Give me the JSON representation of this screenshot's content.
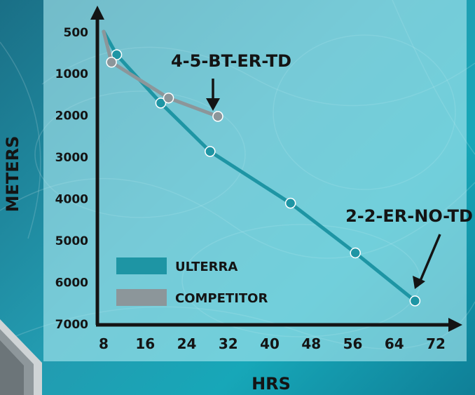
{
  "chart_data": {
    "type": "line",
    "xlabel": "HRS",
    "ylabel": "METERS",
    "x_ticks": [
      "8",
      "16",
      "24",
      "32",
      "40",
      "48",
      "56",
      "64",
      "72"
    ],
    "y_ticks": [
      "500",
      "1000",
      "2000",
      "3000",
      "4000",
      "5000",
      "6000",
      "7000"
    ],
    "xlim": [
      8,
      72
    ],
    "y_reversed": true,
    "legend_placement": "bottom-left",
    "series": [
      {
        "name": "ULTERRA",
        "color": "#1e95a4",
        "points": [
          [
            8,
            500
          ],
          [
            10.5,
            780
          ],
          [
            19,
            1720
          ],
          [
            28.5,
            2880
          ],
          [
            44,
            4120
          ],
          [
            56.5,
            5310
          ],
          [
            68,
            6460
          ]
        ]
      },
      {
        "name": "COMPETITOR",
        "color": "#8c969a",
        "points": [
          [
            8,
            500
          ],
          [
            9.5,
            870
          ],
          [
            20.5,
            1600
          ],
          [
            30,
            2040
          ]
        ]
      }
    ],
    "annotations": [
      {
        "text": "4-5-BT-ER-TD",
        "target": [
          30,
          2040
        ]
      },
      {
        "text": "2-2-ER-NO-TD",
        "target": [
          68,
          6460
        ]
      }
    ]
  }
}
